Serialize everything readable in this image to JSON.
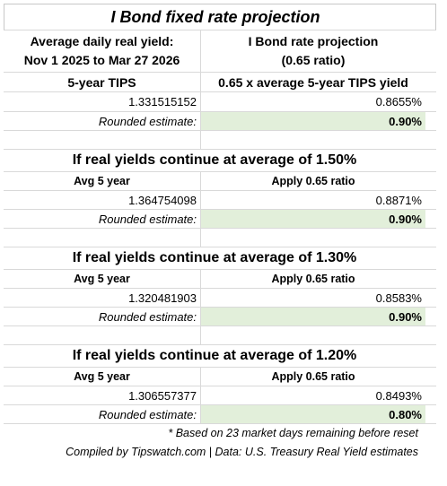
{
  "title": "I Bond fixed rate projection",
  "header": {
    "left_line1": "Average daily real yield:",
    "left_line2": "Nov 1 2025 to Mar 27 2026",
    "right_line1": "I Bond rate projection",
    "right_line2": "(0.65 ratio)"
  },
  "main": {
    "col_left": "5-year TIPS",
    "col_right": "0.65 x average 5-year TIPS yield",
    "value": "1.331515152",
    "result": "0.8655%",
    "rounded_label": "Rounded estimate:",
    "rounded_value": "0.90%"
  },
  "scenarios": [
    {
      "heading": "If real yields continue at average of 1.50%",
      "col_left": "Avg 5 year",
      "col_right": "Apply 0.65 ratio",
      "value": "1.364754098",
      "result": "0.8871%",
      "rounded_label": "Rounded estimate:",
      "rounded_value": "0.90%"
    },
    {
      "heading": "If real yields continue at average of 1.30%",
      "col_left": "Avg 5 year",
      "col_right": "Apply 0.65 ratio",
      "value": "1.320481903",
      "result": "0.8583%",
      "rounded_label": "Rounded estimate:",
      "rounded_value": "0.90%"
    },
    {
      "heading": "If real yields continue at average of 1.20%",
      "col_left": "Avg 5 year",
      "col_right": "Apply 0.65 ratio",
      "value": "1.306557377",
      "result": "0.8493%",
      "rounded_label": "Rounded estimate:",
      "rounded_value": "0.80%"
    }
  ],
  "footnote": "* Based on 23 market days remaining before reset",
  "credit": "Compiled by Tipswatch.com | Data: U.S. Treasury Real Yield estimates"
}
